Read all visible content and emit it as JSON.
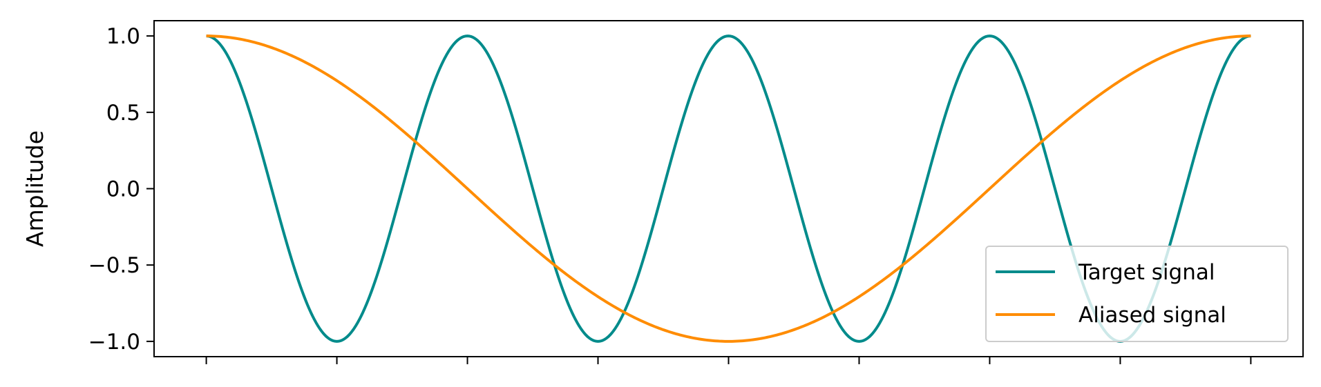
{
  "chart_data": {
    "type": "line",
    "title": "",
    "xlabel": "",
    "ylabel": "Amplitude",
    "xlim": [
      -0.05,
      1.05
    ],
    "ylim": [
      -1.1,
      1.1
    ],
    "x_ticks": [
      0,
      0.125,
      0.25,
      0.375,
      0.5,
      0.625,
      0.75,
      0.875,
      1.0
    ],
    "x_tick_labels_visible": false,
    "y_ticks": [
      1.0,
      0.5,
      0.0,
      -0.5,
      -1.0
    ],
    "y_tick_labels": [
      "1.0",
      "0.5",
      "0.0",
      "−0.5",
      "−1.0"
    ],
    "grid": false,
    "legend_position": "bottom-right",
    "series": [
      {
        "name": "Target signal",
        "color": "#008b8b",
        "function": "cos",
        "frequency_cycles": 4,
        "amplitude": 1.0,
        "x_start": 0,
        "x_end": 1,
        "samples": 600
      },
      {
        "name": "Aliased signal",
        "color": "#ff8c00",
        "function": "cos",
        "frequency_cycles": 1,
        "amplitude": 1.0,
        "x_start": 0,
        "x_end": 1,
        "samples": 600
      }
    ]
  }
}
